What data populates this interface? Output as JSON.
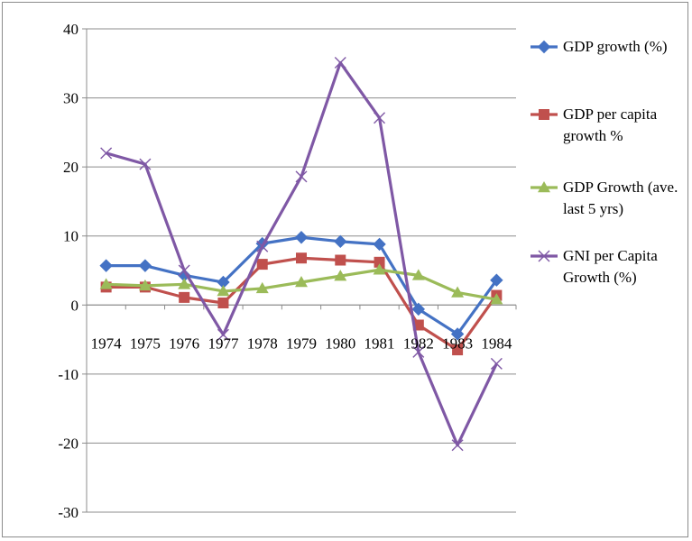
{
  "chart_data": {
    "type": "line",
    "categories": [
      "1974",
      "1975",
      "1976",
      "1977",
      "1978",
      "1979",
      "1980",
      "1981",
      "1982",
      "1983",
      "1984"
    ],
    "ylim": [
      -30,
      40
    ],
    "yticks": [
      -30,
      -20,
      -10,
      0,
      10,
      20,
      30,
      40
    ],
    "grid": "horizontal",
    "legend_position": "right",
    "series": [
      {
        "name": "GDP growth (%)",
        "legend_lines": [
          "GDP growth (%)"
        ],
        "color": "#4472c4",
        "marker": "diamond",
        "values": [
          5.7,
          5.7,
          4.3,
          3.3,
          8.9,
          9.8,
          9.2,
          8.8,
          -0.6,
          -4.2,
          3.6
        ]
      },
      {
        "name": "GDP per capita growth %",
        "legend_lines": [
          "GDP per capita",
          "growth %"
        ],
        "color": "#c0504d",
        "marker": "square",
        "values": [
          2.6,
          2.6,
          1.1,
          0.3,
          5.9,
          6.8,
          6.5,
          6.2,
          -2.9,
          -6.5,
          1.4
        ]
      },
      {
        "name": "GDP Growth (ave. last 5 yrs)",
        "legend_lines": [
          "GDP Growth (ave.",
          "last 5 yrs)"
        ],
        "color": "#9bbb59",
        "marker": "triangle",
        "values": [
          3.0,
          2.8,
          3.0,
          2.0,
          2.4,
          3.3,
          4.2,
          5.1,
          4.3,
          1.8,
          0.8
        ]
      },
      {
        "name": "GNI per Capita Growth (%)",
        "legend_lines": [
          "GNI per Capita",
          "Growth (%)"
        ],
        "color": "#7f58a5",
        "marker": "x",
        "values": [
          22.0,
          20.4,
          5.0,
          -4.3,
          8.5,
          18.6,
          35.1,
          27.1,
          -6.8,
          -20.3,
          -8.5
        ]
      }
    ]
  }
}
